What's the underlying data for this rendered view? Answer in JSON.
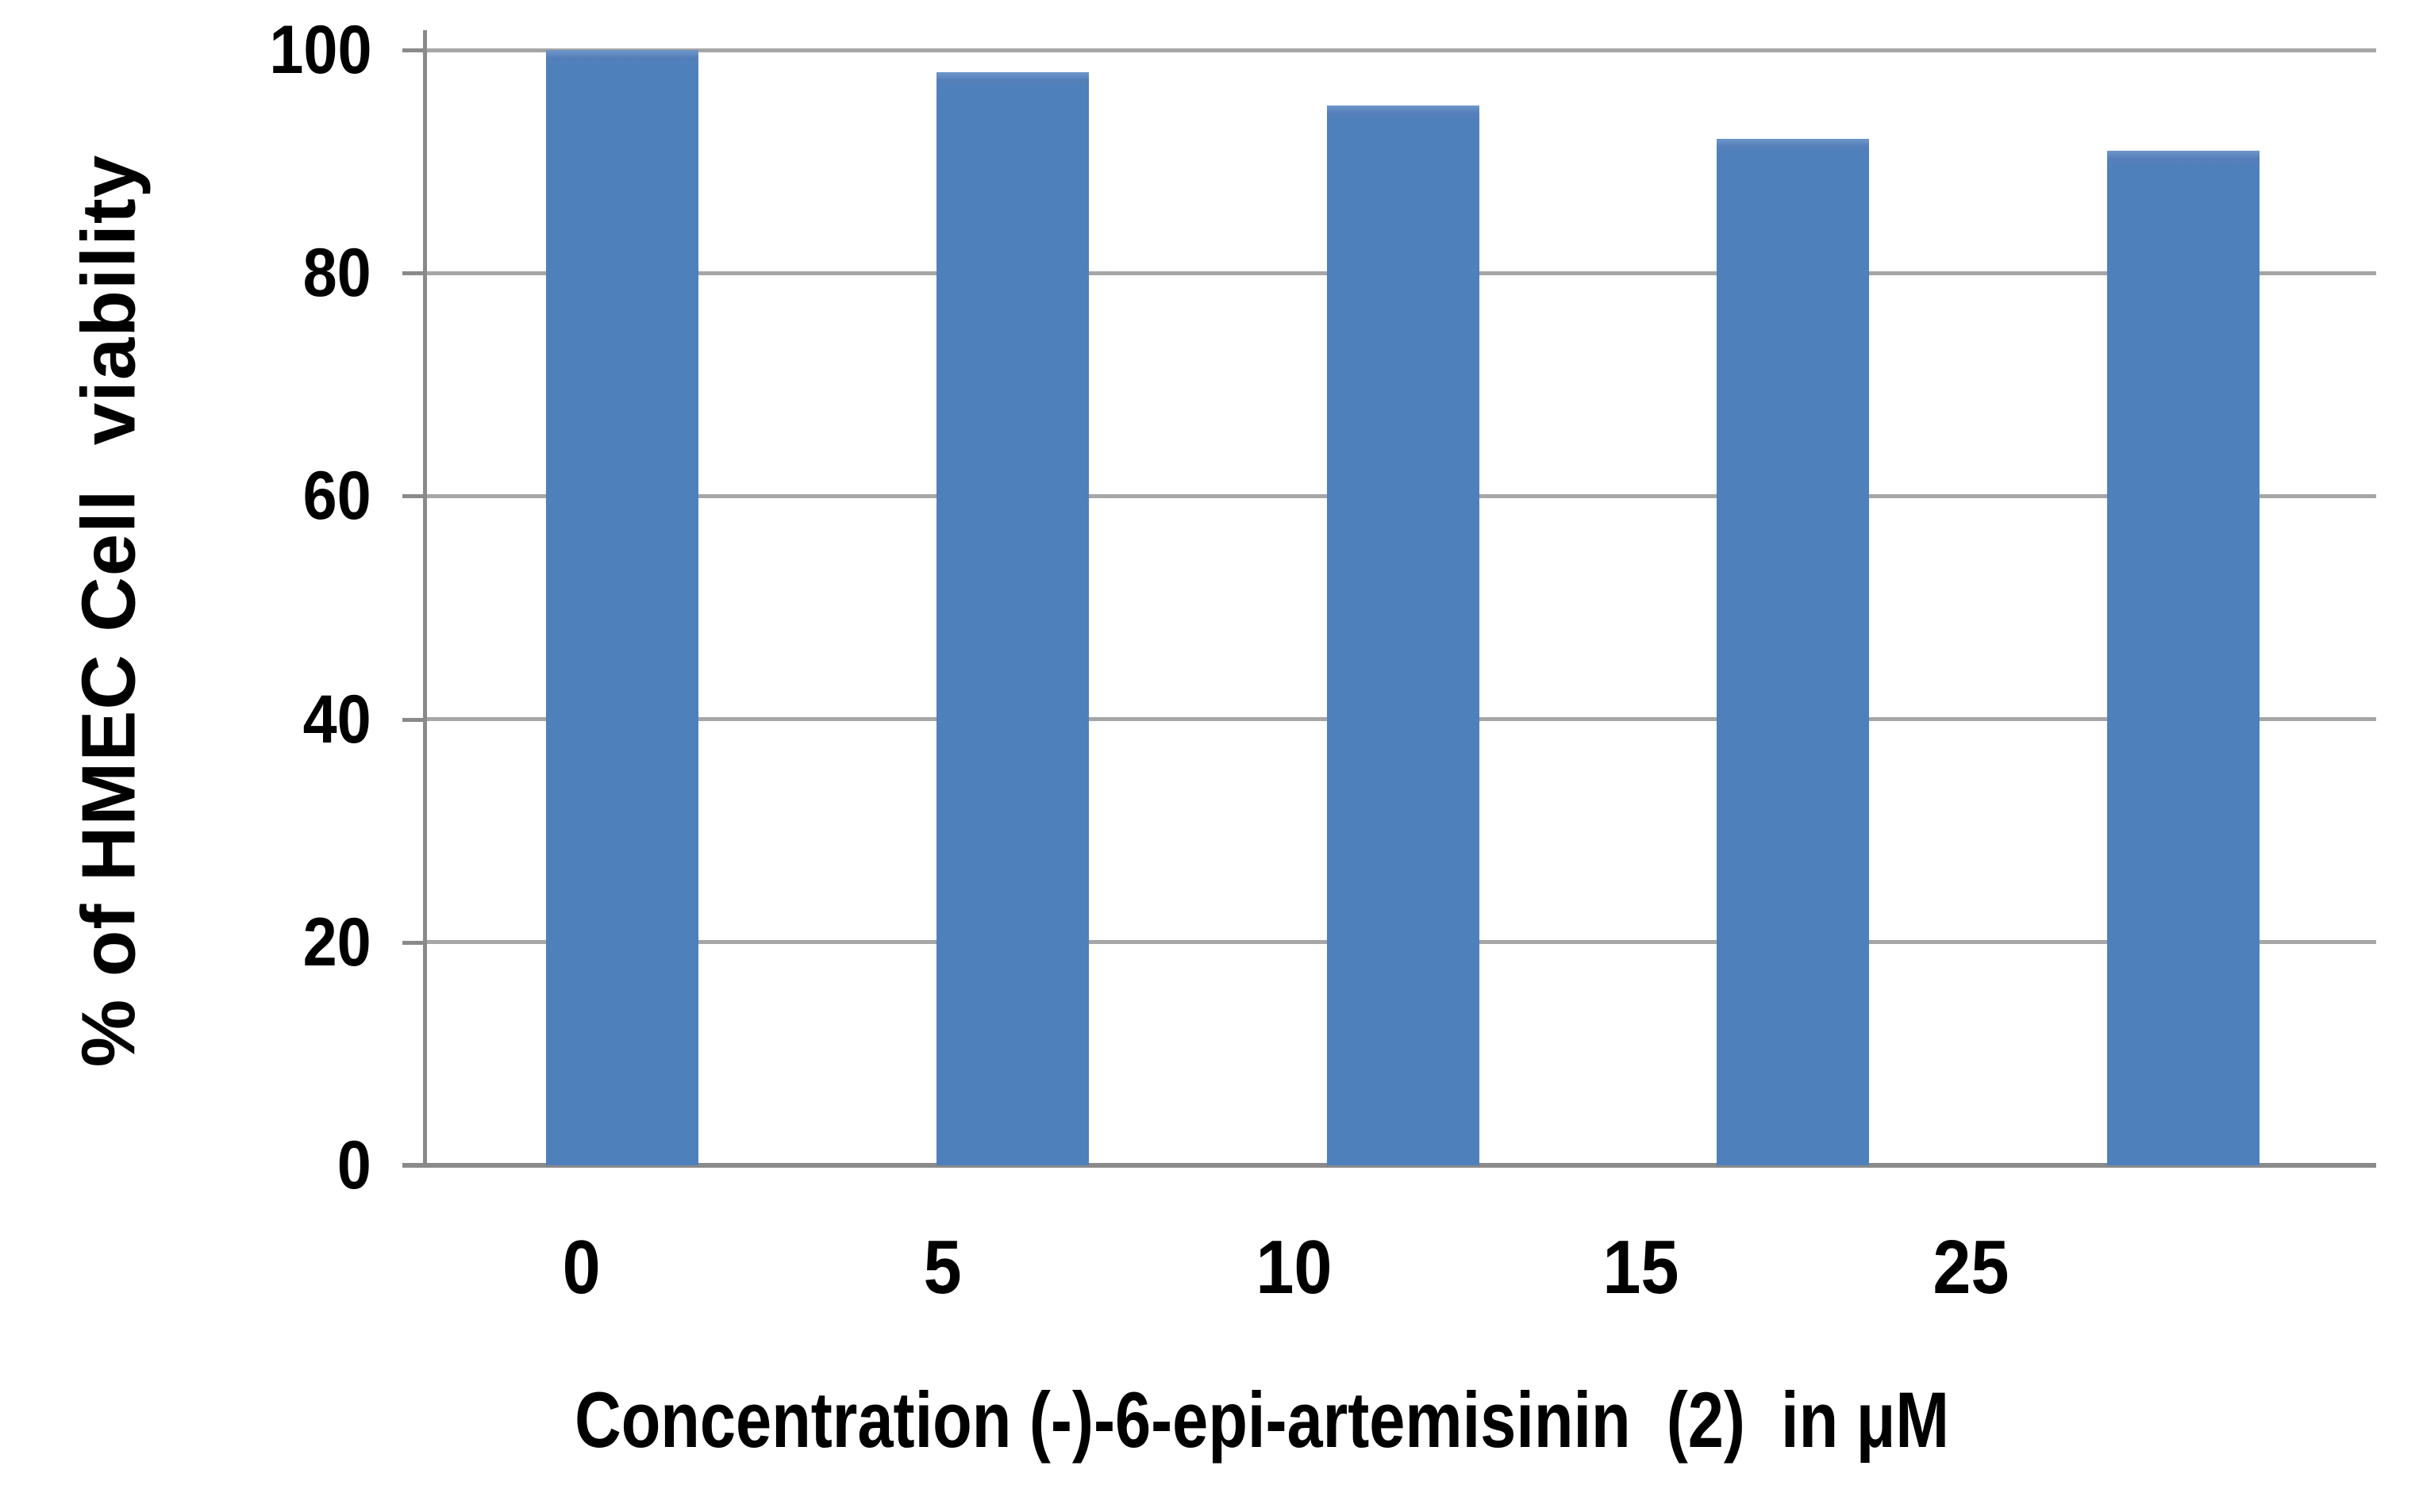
{
  "chart_data": {
    "type": "bar",
    "title": "",
    "categories": [
      "0",
      "5",
      "10",
      "15",
      "25"
    ],
    "values": [
      100,
      98,
      95,
      92,
      91
    ],
    "xlabel": "Concentration (-)-6-epi-artemisinin  (2)  in μM",
    "ylabel": "% of HMEC Cell  viability",
    "ylim": [
      0,
      100
    ],
    "y_ticks": [
      0,
      20,
      40,
      60,
      80,
      100
    ],
    "grid": "horizontal gridlines at every 20, plus top line at 100",
    "legend": "none",
    "colors": {
      "bar": "#4e80bc",
      "gridline": "#a6a6a6",
      "axis": "#8a8a8a",
      "text": "#000000",
      "background": "#ffffff"
    }
  }
}
